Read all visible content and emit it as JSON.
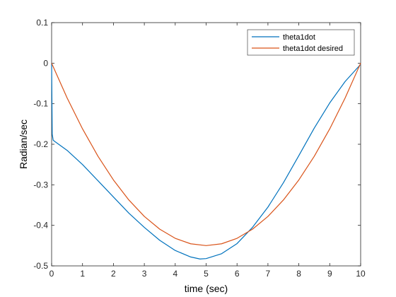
{
  "chart_data": {
    "type": "line",
    "title": "",
    "xlabel": "time (sec)",
    "ylabel": "Radian/sec",
    "xlim": [
      0,
      10
    ],
    "ylim": [
      -0.5,
      0.1
    ],
    "xticks": [
      "0",
      "1",
      "2",
      "3",
      "4",
      "5",
      "6",
      "7",
      "8",
      "9",
      "10"
    ],
    "yticks": [
      "0.1",
      "0",
      "-0.1",
      "-0.2",
      "-0.3",
      "-0.4",
      "-0.5"
    ],
    "grid": false,
    "legend_position": "top-right",
    "series": [
      {
        "name": "theta1dot",
        "color": "#0072BD",
        "x": [
          0,
          0.02,
          0.05,
          0.1,
          0.5,
          1,
          1.5,
          2,
          2.5,
          3,
          3.5,
          4,
          4.5,
          4.8,
          5,
          5.5,
          6,
          6.5,
          7,
          7.5,
          8,
          8.5,
          9,
          9.5,
          10
        ],
        "y": [
          0,
          -0.175,
          -0.19,
          -0.193,
          -0.215,
          -0.25,
          -0.29,
          -0.33,
          -0.37,
          -0.405,
          -0.437,
          -0.462,
          -0.478,
          -0.483,
          -0.482,
          -0.47,
          -0.445,
          -0.405,
          -0.355,
          -0.295,
          -0.228,
          -0.16,
          -0.098,
          -0.045,
          -0.003
        ]
      },
      {
        "name": "theta1dot desired",
        "color": "#D95319",
        "x": [
          0,
          0.5,
          1,
          1.5,
          2,
          2.5,
          3,
          3.5,
          4,
          4.5,
          5,
          5.5,
          6,
          6.5,
          7,
          7.5,
          8,
          8.5,
          9,
          9.5,
          10
        ],
        "y": [
          0,
          -0.0855,
          -0.162,
          -0.2295,
          -0.288,
          -0.3375,
          -0.378,
          -0.4095,
          -0.432,
          -0.4455,
          -0.45,
          -0.4455,
          -0.432,
          -0.4095,
          -0.378,
          -0.3375,
          -0.288,
          -0.2295,
          -0.162,
          -0.0855,
          0
        ]
      }
    ]
  }
}
